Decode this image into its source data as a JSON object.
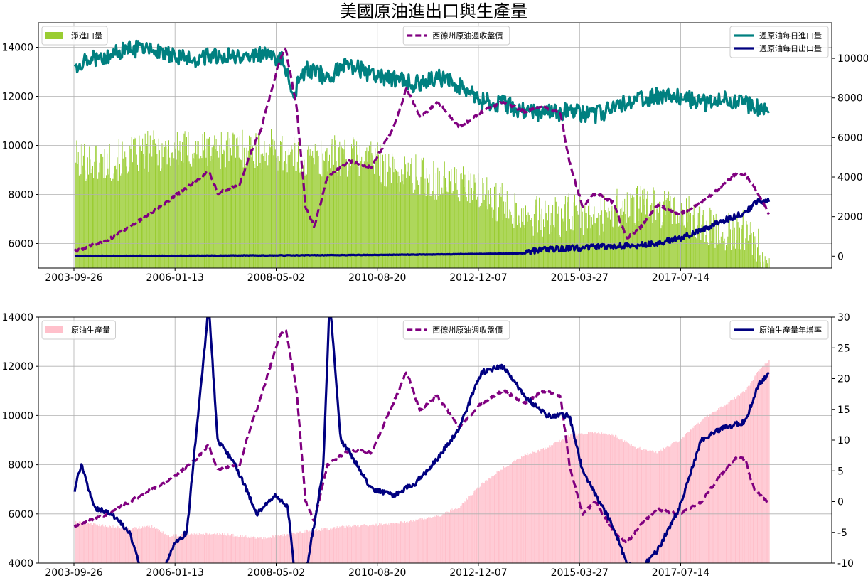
{
  "title": "美國原油進出口與生產量",
  "chart_data": [
    {
      "type": "bar+line",
      "x_dates": [
        "2003-09-26",
        "2006-01-13",
        "2008-05-02",
        "2010-08-20",
        "2012-12-07",
        "2015-03-27",
        "2017-07-14"
      ],
      "x_range": [
        "2003-09-26",
        "2019-12-31"
      ],
      "ylim_left": [
        5000,
        15000
      ],
      "yticks_left": [
        "6000",
        "8000",
        "10000",
        "12000",
        "14000"
      ],
      "ylim_right": [
        -600,
        11800
      ],
      "yticks_right": [
        "0",
        "2000",
        "4000",
        "6000",
        "8000",
        "10000"
      ],
      "grid": true,
      "legends": {
        "upper_left": [
          {
            "label": "淨進口量",
            "color": "#9ACD32"
          }
        ],
        "upper_center": [
          {
            "label": "西德州原油週收盤價",
            "color": "#800080"
          }
        ],
        "upper_right": [
          {
            "label": "週原油每日進口量",
            "color": "#008080"
          },
          {
            "label": "週原油每日出口量",
            "color": "#000080"
          }
        ]
      },
      "series": [
        {
          "name": "淨進口量",
          "axis": "left",
          "style": "bar",
          "x": [
            2003.75,
            2004.5,
            2005.5,
            2006.5,
            2007.5,
            2008.3,
            2009.0,
            2009.5,
            2010.5,
            2011.0,
            2011.5,
            2012.5,
            2013.5,
            2014.0,
            2014.5,
            2015.0,
            2015.5,
            2016.0,
            2016.5,
            2017.0,
            2017.5,
            2018.0,
            2018.5,
            2019.0,
            2019.3,
            2019.55
          ],
          "values": [
            9400,
            9300,
            9800,
            9800,
            9900,
            9800,
            9300,
            9600,
            9500,
            8900,
            8800,
            8400,
            7600,
            7200,
            7000,
            7200,
            7000,
            7400,
            7500,
            7500,
            7300,
            6800,
            6400,
            6600,
            6000,
            5000
          ]
        },
        {
          "name": "週原油每日進口量",
          "axis": "left",
          "style": "line",
          "x": [
            2003.75,
            2004.0,
            2004.5,
            2005.0,
            2005.5,
            2006.0,
            2006.5,
            2007.0,
            2007.5,
            2008.0,
            2008.5,
            2008.7,
            2009.0,
            2009.5,
            2010.0,
            2010.5,
            2011.0,
            2011.5,
            2012.0,
            2012.5,
            2013.0,
            2013.5,
            2014.0,
            2014.5,
            2015.0,
            2015.5,
            2016.0,
            2016.5,
            2017.0,
            2017.5,
            2018.0,
            2018.5,
            2019.0,
            2019.55
          ],
          "values": [
            13200,
            13500,
            13700,
            13900,
            14000,
            13600,
            13500,
            13700,
            13600,
            13700,
            13500,
            12000,
            13100,
            12800,
            13300,
            12900,
            12700,
            12500,
            12800,
            12400,
            11800,
            11700,
            11400,
            11300,
            11400,
            11200,
            11500,
            11900,
            12000,
            12000,
            11700,
            11900,
            11700,
            11400
          ]
        },
        {
          "name": "週原油每日出口量",
          "axis": "right",
          "style": "line",
          "x": [
            2003.75,
            2006.0,
            2008.0,
            2010.0,
            2012.0,
            2013.0,
            2014.0,
            2014.1,
            2014.5,
            2015.0,
            2015.5,
            2016.0,
            2016.5,
            2017.0,
            2017.5,
            2018.0,
            2018.5,
            2019.0,
            2019.3,
            2019.55
          ],
          "values": [
            20,
            25,
            40,
            60,
            90,
            120,
            150,
            250,
            350,
            400,
            450,
            500,
            550,
            650,
            900,
            1300,
            1800,
            2200,
            2800,
            2800
          ]
        },
        {
          "name": "西德州原油週收盤價",
          "axis": "right",
          "style": "dashed",
          "x": [
            2003.75,
            2004.5,
            2005.0,
            2005.5,
            2006.0,
            2006.5,
            2006.8,
            2007.0,
            2007.5,
            2007.8,
            2008.0,
            2008.4,
            2008.55,
            2008.8,
            2009.0,
            2009.2,
            2009.5,
            2010.0,
            2010.5,
            2011.0,
            2011.3,
            2011.6,
            2012.0,
            2012.5,
            2013.0,
            2013.5,
            2014.0,
            2014.4,
            2014.8,
            2015.0,
            2015.3,
            2015.6,
            2016.0,
            2016.3,
            2016.6,
            2017.0,
            2017.5,
            2018.0,
            2018.5,
            2018.8,
            2019.0,
            2019.2,
            2019.55
          ],
          "values": [
            250,
            800,
            1500,
            2200,
            3000,
            3800,
            4300,
            3200,
            3600,
            5500,
            6500,
            9800,
            10500,
            7500,
            2500,
            1500,
            4000,
            4800,
            4500,
            6500,
            8500,
            7000,
            7800,
            6500,
            7300,
            7800,
            7300,
            7600,
            7200,
            4800,
            2500,
            3200,
            2700,
            900,
            1400,
            2600,
            2100,
            2700,
            3600,
            4200,
            4100,
            3500,
            2100
          ]
        }
      ]
    },
    {
      "type": "bar+line",
      "x_dates": [
        "2003-09-26",
        "2006-01-13",
        "2008-05-02",
        "2010-08-20",
        "2012-12-07",
        "2015-03-27",
        "2017-07-14"
      ],
      "x_range": [
        "2003-09-26",
        "2019-12-31"
      ],
      "ylim_left": [
        4000,
        14000
      ],
      "yticks_left": [
        "4000",
        "6000",
        "8000",
        "10000",
        "12000",
        "14000"
      ],
      "ylim_right": [
        -10,
        30
      ],
      "yticks_right": [
        "-10",
        "-5",
        "0",
        "5",
        "10",
        "15",
        "20",
        "25",
        "30"
      ],
      "grid": true,
      "legends": {
        "upper_left": [
          {
            "label": "原油生產量",
            "color": "#FFC0CB"
          }
        ],
        "upper_center": [
          {
            "label": "西德州原油週收盤價",
            "color": "#800080"
          }
        ],
        "upper_right": [
          {
            "label": "原油生產量年增率",
            "color": "#000080"
          }
        ]
      },
      "series": [
        {
          "name": "原油生產量",
          "axis": "left",
          "style": "bar",
          "x": [
            2003.75,
            2004.5,
            2005.0,
            2005.5,
            2005.9,
            2006.5,
            2007.0,
            2008.0,
            2009.0,
            2010.0,
            2011.0,
            2012.0,
            2012.5,
            2013.0,
            2013.5,
            2014.0,
            2014.5,
            2015.0,
            2015.5,
            2016.0,
            2016.5,
            2017.0,
            2017.5,
            2018.0,
            2018.5,
            2019.0,
            2019.3,
            2019.55
          ],
          "values": [
            5700,
            5500,
            5400,
            5500,
            5100,
            5200,
            5200,
            5000,
            5300,
            5500,
            5600,
            5900,
            6300,
            7200,
            7900,
            8400,
            8700,
            9200,
            9300,
            9200,
            8700,
            8500,
            9000,
            9800,
            10400,
            11000,
            11800,
            12300
          ]
        },
        {
          "name": "西德州原油週收盤價",
          "axis": "left",
          "style": "dashed",
          "x": [
            2003.75,
            2004.5,
            2005.0,
            2005.5,
            2006.0,
            2006.5,
            2006.8,
            2007.0,
            2007.5,
            2007.8,
            2008.0,
            2008.4,
            2008.55,
            2008.8,
            2009.0,
            2009.2,
            2009.5,
            2010.0,
            2010.5,
            2011.0,
            2011.3,
            2011.6,
            2012.0,
            2012.5,
            2013.0,
            2013.5,
            2014.0,
            2014.4,
            2014.8,
            2015.0,
            2015.3,
            2015.6,
            2016.0,
            2016.3,
            2016.6,
            2017.0,
            2017.5,
            2018.0,
            2018.5,
            2018.8,
            2019.0,
            2019.2,
            2019.55
          ],
          "values": [
            5500,
            6000,
            6500,
            7000,
            7500,
            8200,
            8800,
            7800,
            8000,
            9800,
            10800,
            13200,
            13500,
            11000,
            6500,
            5700,
            8000,
            8600,
            8500,
            10500,
            11800,
            10200,
            10800,
            9500,
            10500,
            11000,
            10500,
            11000,
            10800,
            8000,
            6000,
            6500,
            5300,
            4800,
            5500,
            6200,
            6000,
            6500,
            7700,
            8300,
            8200,
            7000,
            6400
          ]
        },
        {
          "name": "原油生產量年增率",
          "axis": "right",
          "style": "line",
          "x": [
            2003.75,
            2003.9,
            2004.2,
            2004.6,
            2005.0,
            2005.3,
            2005.6,
            2006.0,
            2006.3,
            2006.8,
            2007.0,
            2007.4,
            2007.9,
            2008.3,
            2008.6,
            2008.8,
            2009.0,
            2009.4,
            2009.55,
            2009.8,
            2010.0,
            2010.5,
            2011.0,
            2011.5,
            2012.0,
            2012.5,
            2013.0,
            2013.5,
            2014.0,
            2014.5,
            2015.0,
            2015.3,
            2015.6,
            2016.0,
            2016.3,
            2016.6,
            2017.0,
            2017.5,
            2018.0,
            2018.5,
            2019.0,
            2019.3,
            2019.55
          ],
          "values": [
            2,
            6,
            -1,
            -2,
            -5,
            -12,
            -14,
            -7,
            -5,
            32,
            10,
            6,
            -2,
            1,
            -1,
            -15,
            -12,
            5,
            33,
            10,
            8,
            2,
            1,
            3,
            7,
            12,
            21,
            22,
            17,
            14,
            14,
            5,
            1,
            -4,
            -10,
            -11,
            -8,
            -1,
            10,
            12,
            13,
            19,
            21
          ]
        }
      ]
    }
  ]
}
